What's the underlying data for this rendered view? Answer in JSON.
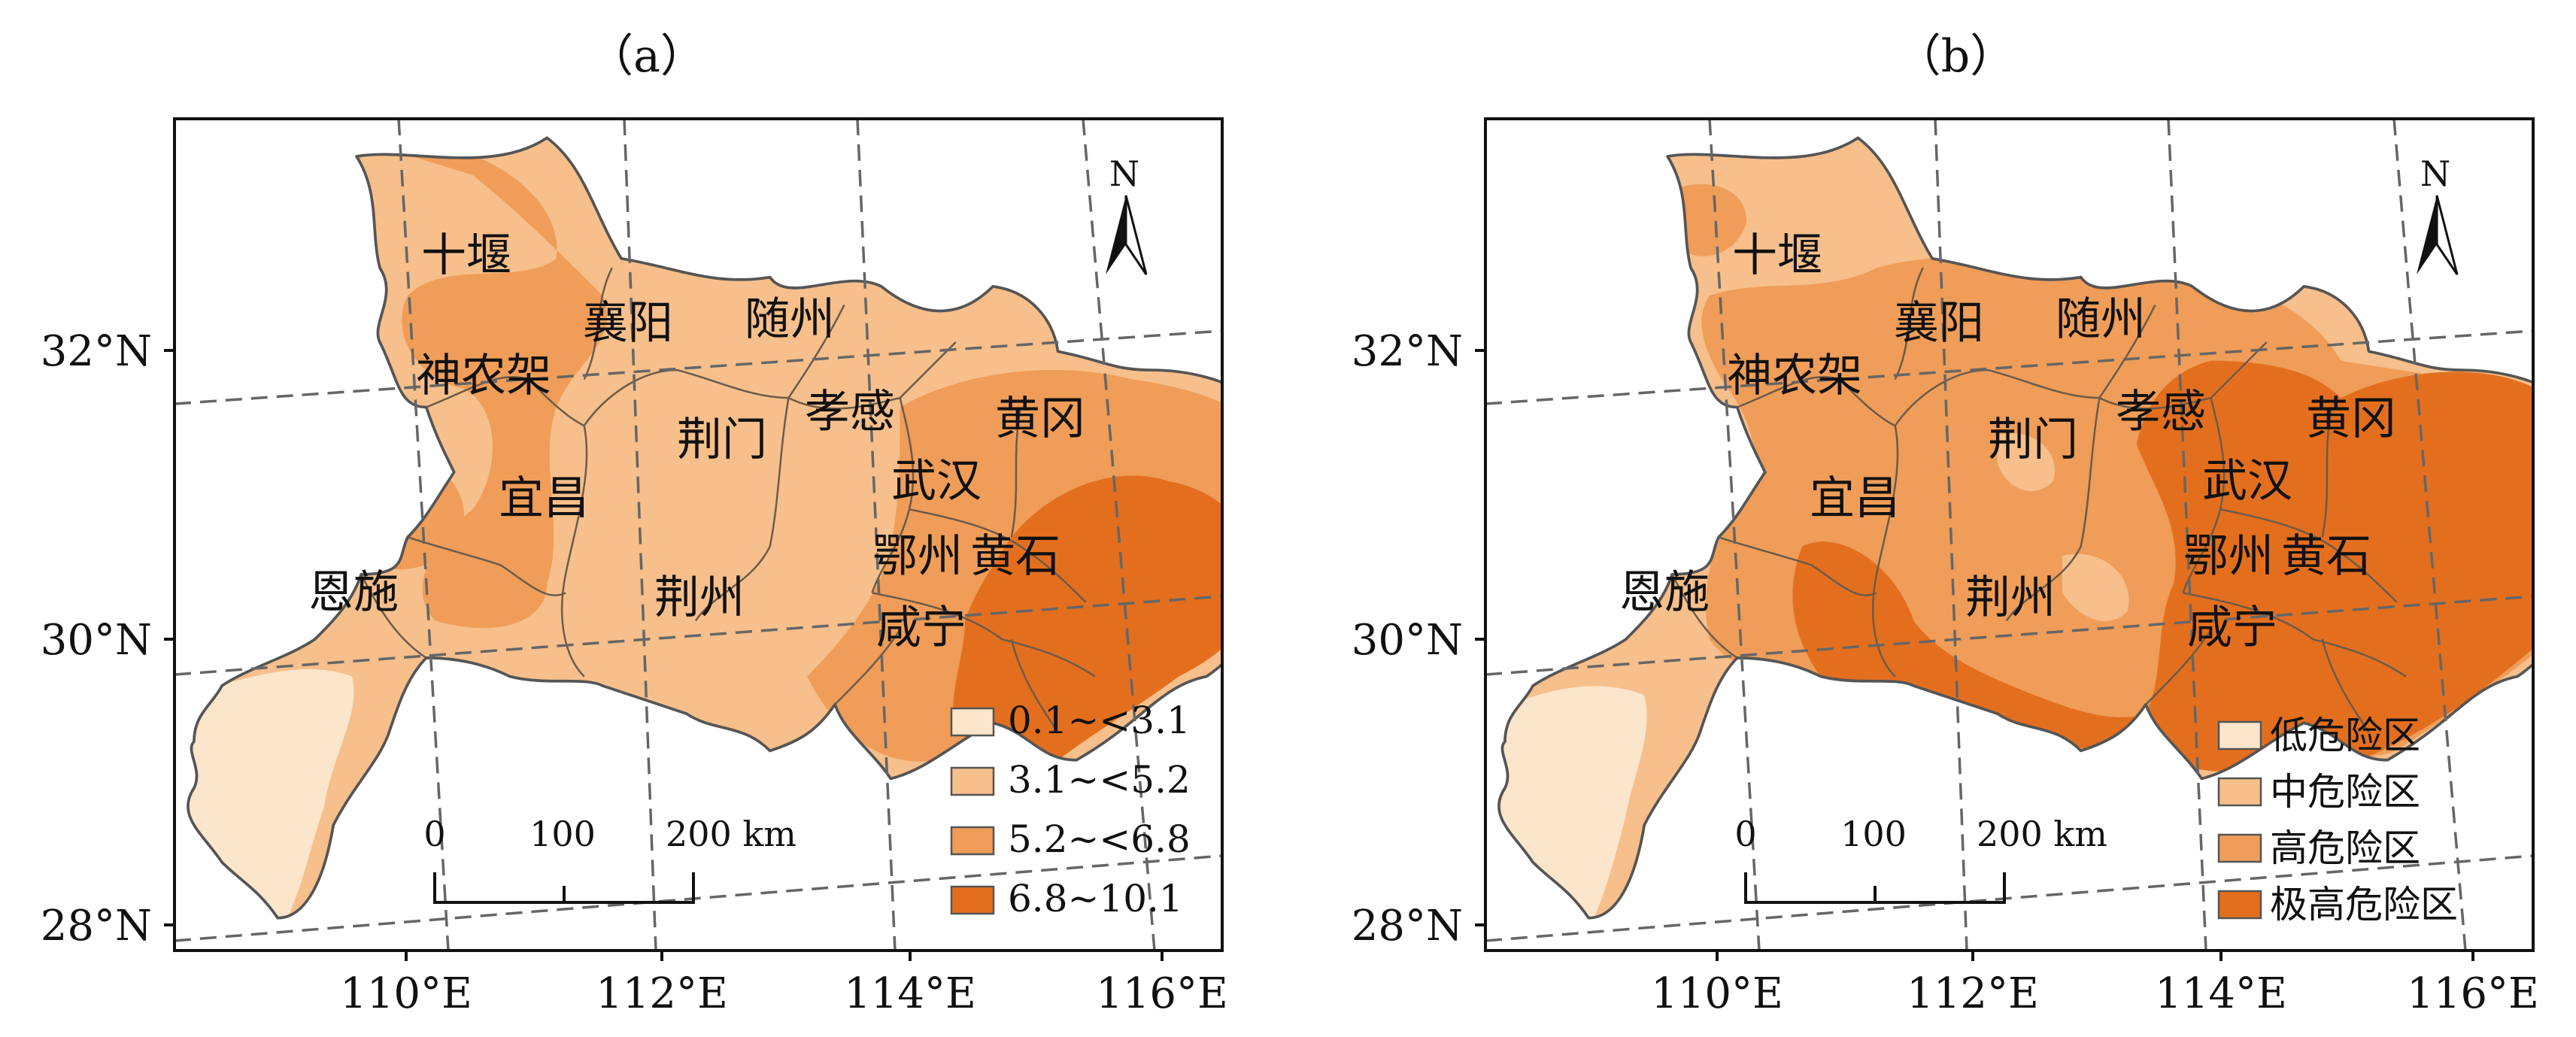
{
  "colors": {
    "class1": "#fbe5cb",
    "class2": "#f6bf8b",
    "class3": "#ef9d58",
    "class4": "#e36f1e"
  },
  "panels": [
    {
      "label": "（a）",
      "legend": [
        "0.1~<3.1",
        "3.1~<5.2",
        "5.2~<6.8",
        "6.8~10.1"
      ],
      "lat_labels": [
        "32°N",
        "30°N",
        "28°N"
      ],
      "lon_labels": [
        "110°E",
        "112°E",
        "114°E",
        "116°E"
      ],
      "scale": {
        "labels": [
          "0",
          "100",
          "200 km"
        ]
      },
      "north": "N",
      "cities": [
        "十堰",
        "襄阳",
        "随州",
        "神农架",
        "孝感",
        "黄冈",
        "荆门",
        "宜昌",
        "武汉",
        "恩施",
        "鄂州",
        "黄石",
        "荆州",
        "咸宁"
      ]
    },
    {
      "label": "（b）",
      "legend": [
        "低危险区",
        "中危险区",
        "高危险区",
        "极高危险区"
      ],
      "lat_labels": [
        "32°N",
        "30°N",
        "28°N"
      ],
      "lon_labels": [
        "110°E",
        "112°E",
        "114°E",
        "116°E"
      ],
      "scale": {
        "labels": [
          "0",
          "100",
          "200 km"
        ]
      },
      "north": "N",
      "cities": [
        "十堰",
        "襄阳",
        "随州",
        "神农架",
        "孝感",
        "黄冈",
        "荆门",
        "宜昌",
        "武汉",
        "恩施",
        "鄂州",
        "黄石",
        "荆州",
        "咸宁"
      ]
    }
  ]
}
